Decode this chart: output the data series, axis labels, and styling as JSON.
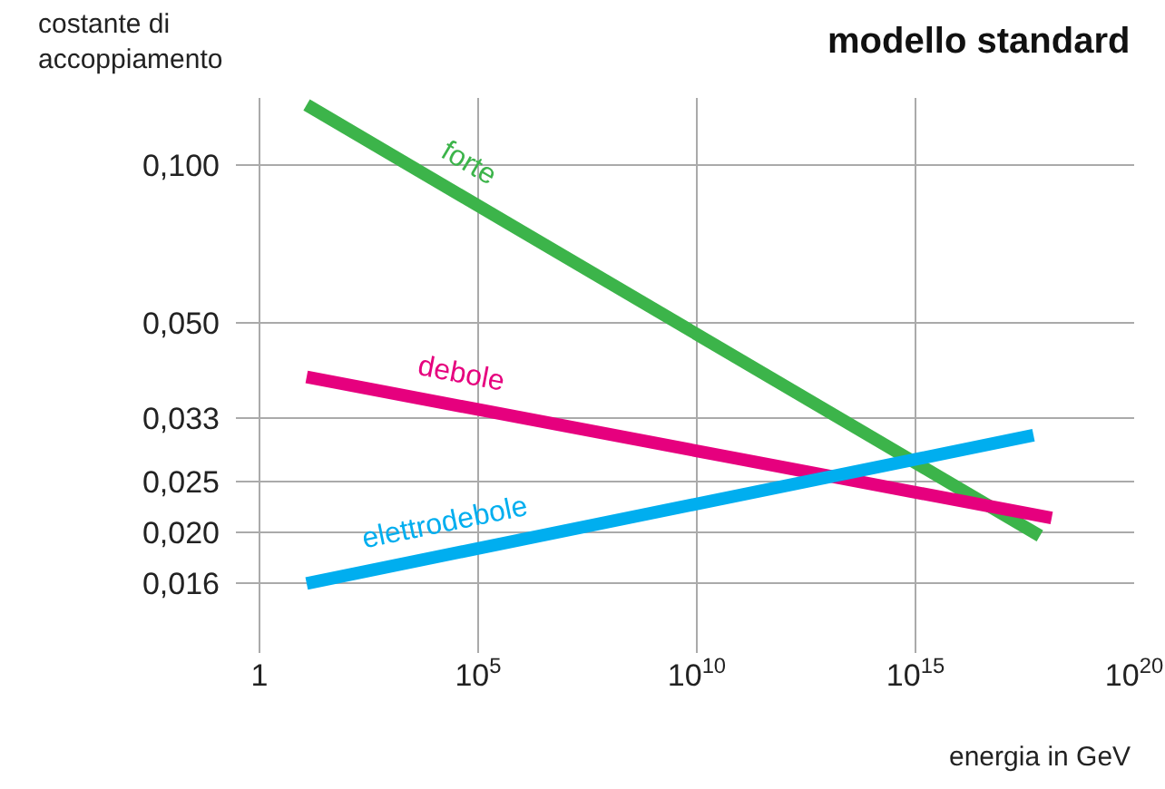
{
  "chart_data": {
    "type": "line",
    "title": "modello standard",
    "ylabel": "costante di\naccoppiamento",
    "xlabel": "energia in GeV",
    "log": "xy",
    "xlim": [
      0.29,
      1e+20
    ],
    "xticks": [
      1,
      {
        "value": 100000,
        "label": "10$^{5}$"
      },
      {
        "value": 10000000000.0,
        "label": "10$^{10}$"
      },
      {
        "value": 1000000000000000.0,
        "label": "10$^{15}$"
      },
      {
        "value": 1e+20,
        "label": "10$^{20}$"
      }
    ],
    "ylim": [
      0.0118,
      0.134
    ],
    "yticks": [
      {
        "value": 0.1,
        "label": "0,100"
      },
      {
        "value": 0.05,
        "label": "0,050"
      },
      {
        "value": 0.033,
        "label": "0,033"
      },
      {
        "value": 0.025,
        "label": "0,025"
      },
      {
        "value": 0.02,
        "label": "0,020"
      },
      {
        "value": 0.016,
        "label": "0,016"
      }
    ],
    "grid": true,
    "legend": false,
    "line_style": "solid",
    "marker": "none",
    "series": [
      {
        "name": "forte",
        "color": "#3cb44a",
        "x": [
          12,
          7e+17
        ],
        "values": [
          0.13,
          0.0197
        ]
      },
      {
        "name": "debole",
        "color": "#e6007e",
        "x": [
          12,
          1.3e+18
        ],
        "values": [
          0.0395,
          0.0213
        ]
      },
      {
        "name": "elettrodebole",
        "color": "#00aeef",
        "x": [
          12,
          5e+17
        ],
        "values": [
          0.016,
          0.0306
        ]
      }
    ]
  }
}
